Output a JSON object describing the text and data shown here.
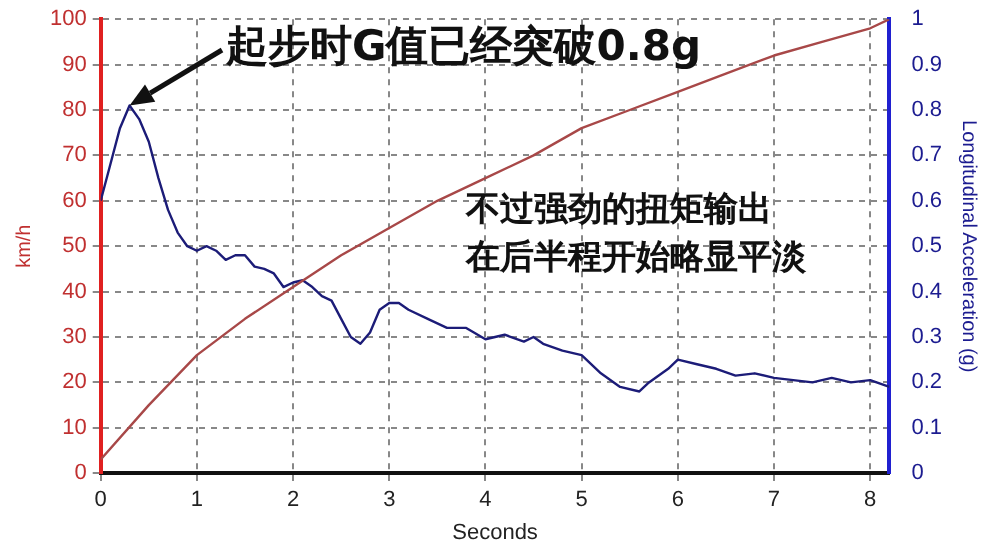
{
  "chart_data": {
    "type": "line",
    "xlabel": "Seconds",
    "ylabel": "km/h",
    "y2label": "Longitudinal Acceleration (g)",
    "annotations": [
      {
        "text": "起步时G值已经突破0.8g",
        "x": 0.3,
        "y": 81
      },
      "不过强劲的扭矩输出",
      "在后半程开始略显平淡"
    ],
    "xlim": [
      0,
      8.2
    ],
    "xticks": [
      0,
      1,
      2,
      3,
      4,
      5,
      6,
      7,
      8
    ],
    "ylim": [
      0,
      100
    ],
    "yticks": [
      0,
      10,
      20,
      30,
      40,
      50,
      60,
      70,
      80,
      90,
      100
    ],
    "y2lim": [
      0,
      1
    ],
    "y2ticks": [
      0,
      0.1,
      0.2,
      0.3,
      0.4,
      0.5,
      0.6,
      0.7,
      0.8,
      0.9,
      1
    ],
    "grid": true,
    "legend": false,
    "marker": "none",
    "line_style": "solid",
    "series": [
      {
        "color": "#a84848",
        "x": [
          0,
          0.5,
          1,
          1.5,
          2,
          2.5,
          3,
          3.5,
          4,
          4.5,
          5,
          5.5,
          6,
          6.5,
          7,
          7.5,
          8,
          8.2
        ],
        "values": [
          3,
          15,
          26,
          34,
          41,
          48,
          54,
          60,
          65,
          70,
          76,
          80,
          84,
          88,
          92,
          95,
          98,
          100
        ]
      },
      {
        "color": "#1c1c78",
        "axis": "y2",
        "x": [
          0,
          0.1,
          0.2,
          0.3,
          0.4,
          0.5,
          0.6,
          0.7,
          0.8,
          0.9,
          1,
          1.1,
          1.2,
          1.3,
          1.4,
          1.5,
          1.6,
          1.7,
          1.8,
          1.9,
          2,
          2.1,
          2.2,
          2.3,
          2.4,
          2.5,
          2.6,
          2.7,
          2.8,
          2.9,
          3,
          3.1,
          3.2,
          3.4,
          3.6,
          3.8,
          4,
          4.1,
          4.2,
          4.4,
          4.5,
          4.6,
          4.8,
          5,
          5.2,
          5.4,
          5.6,
          5.7,
          5.9,
          6,
          6.2,
          6.4,
          6.6,
          6.8,
          7,
          7.2,
          7.4,
          7.6,
          7.8,
          8,
          8.2
        ],
        "values": [
          0.6,
          0.68,
          0.76,
          0.81,
          0.78,
          0.73,
          0.65,
          0.58,
          0.53,
          0.5,
          0.49,
          0.5,
          0.49,
          0.47,
          0.48,
          0.48,
          0.455,
          0.45,
          0.44,
          0.41,
          0.42,
          0.425,
          0.41,
          0.39,
          0.38,
          0.34,
          0.3,
          0.285,
          0.31,
          0.36,
          0.375,
          0.375,
          0.36,
          0.34,
          0.32,
          0.32,
          0.295,
          0.3,
          0.305,
          0.29,
          0.3,
          0.285,
          0.27,
          0.26,
          0.22,
          0.19,
          0.18,
          0.2,
          0.23,
          0.25,
          0.24,
          0.23,
          0.215,
          0.22,
          0.21,
          0.205,
          0.2,
          0.21,
          0.2,
          0.205,
          0.19
        ]
      }
    ]
  }
}
